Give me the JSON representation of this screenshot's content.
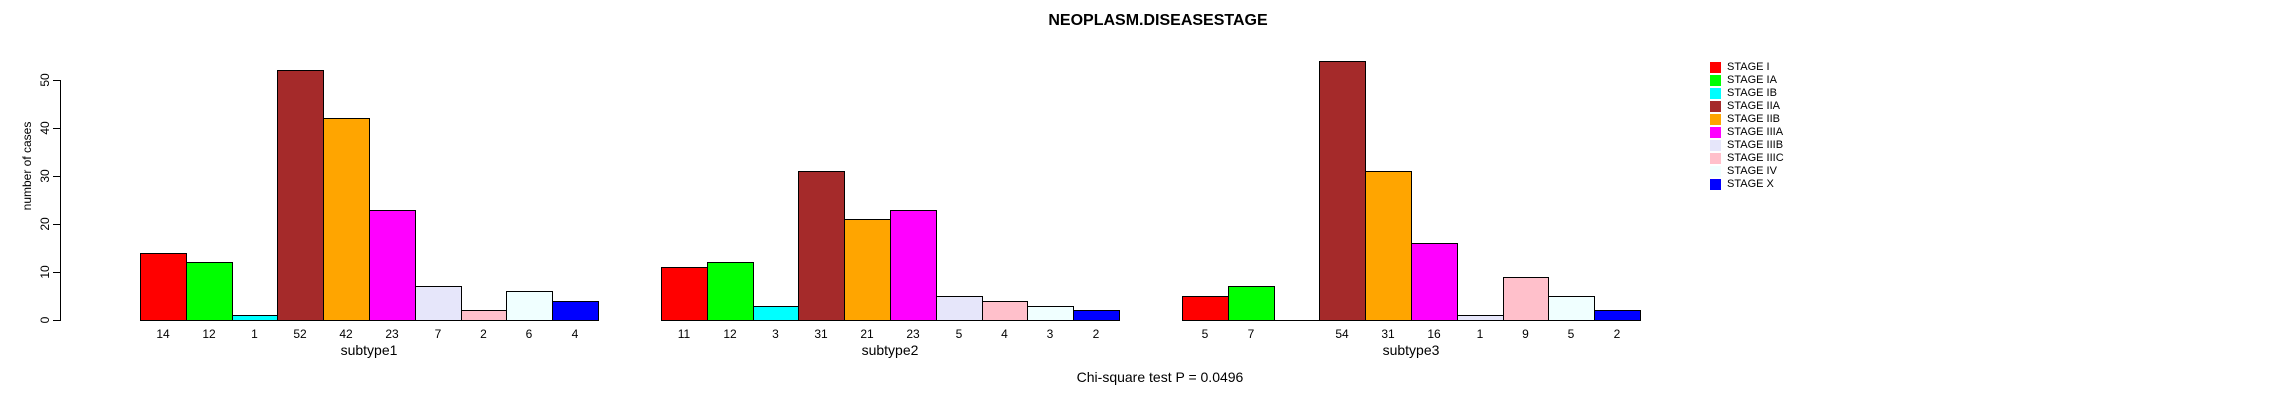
{
  "title": "NEOPLASM.DISEASESTAGE",
  "caption": "Chi-square test P = 0.0496",
  "chart_data": {
    "type": "bar",
    "title": "NEOPLASM.DISEASESTAGE",
    "xlabel": "",
    "ylabel": "number of cases",
    "ylim": [
      0,
      55
    ],
    "yticks": [
      0,
      10,
      20,
      30,
      40,
      50
    ],
    "grid": false,
    "legend_position": "right",
    "categories": [
      "subtype1",
      "subtype2",
      "subtype3"
    ],
    "series": [
      {
        "name": "STAGE I",
        "color": "#FF0000",
        "values": [
          14,
          11,
          5
        ]
      },
      {
        "name": "STAGE IA",
        "color": "#00FF00",
        "values": [
          12,
          12,
          7
        ]
      },
      {
        "name": "STAGE IB",
        "color": "#00FFFF",
        "values": [
          1,
          3,
          0
        ]
      },
      {
        "name": "STAGE IIA",
        "color": "#A52A2A",
        "values": [
          52,
          31,
          54
        ]
      },
      {
        "name": "STAGE IIB",
        "color": "#FFA500",
        "values": [
          42,
          21,
          31
        ]
      },
      {
        "name": "STAGE IIIA",
        "color": "#FF00FF",
        "values": [
          23,
          23,
          16
        ]
      },
      {
        "name": "STAGE IIIB",
        "color": "#E6E6FA",
        "values": [
          7,
          5,
          1
        ]
      },
      {
        "name": "STAGE IIIC",
        "color": "#FFC0CB",
        "values": [
          2,
          4,
          9
        ]
      },
      {
        "name": "STAGE IV",
        "color": "#F0FFFF",
        "values": [
          6,
          3,
          5
        ]
      },
      {
        "name": "STAGE X",
        "color": "#0000FF",
        "values": [
          4,
          2,
          2
        ]
      }
    ],
    "bar_value_labels": [
      [
        "14",
        "12",
        "1",
        "52",
        "42",
        "23",
        "7",
        "2",
        "6",
        "4"
      ],
      [
        "11",
        "12",
        "3",
        "31",
        "21",
        "23",
        "5",
        "4",
        "3",
        "2"
      ],
      [
        "5",
        "7",
        "",
        "54",
        "31",
        "16",
        "1",
        "9",
        "5",
        "2"
      ]
    ],
    "annotation": "Chi-square test P = 0.0496"
  }
}
